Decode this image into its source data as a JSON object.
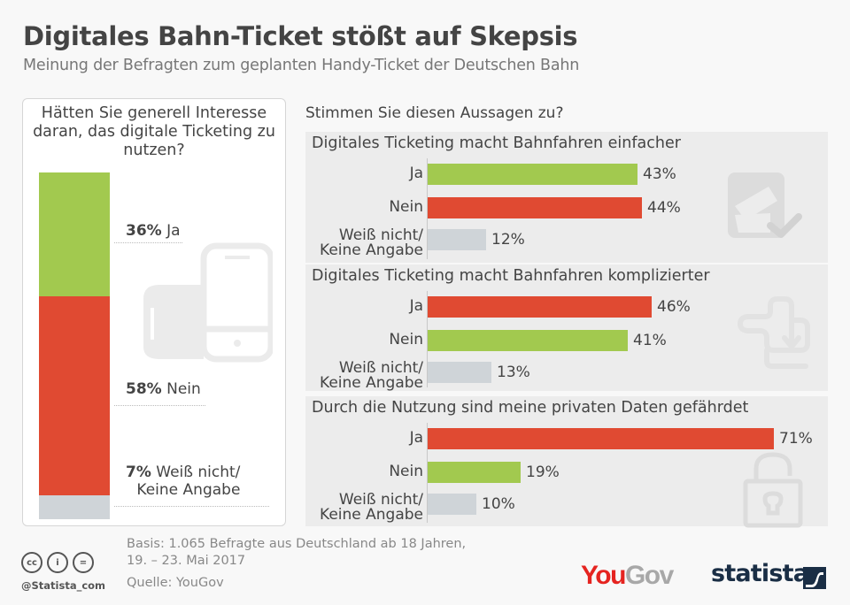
{
  "header": {
    "title": "Digitales Bahn-Ticket stößt auf Skepsis",
    "subtitle": "Meinung der Befragten zum geplanten Handy-Ticket der Deutschen Bahn"
  },
  "colors": {
    "ja_green": "#a2c94f",
    "nein_red": "#e04a32",
    "unknown_grey": "#cfd4d8",
    "group_bg": "#ececec"
  },
  "chart_data": [
    {
      "type": "bar",
      "orientation": "stacked-vertical",
      "title": "Hätten Sie generell Interesse daran, das digitale Ticketing zu nutzen?",
      "categories": [
        "Ja",
        "Nein",
        "Weiß nicht/ Keine Angabe"
      ],
      "values": [
        36,
        58,
        7
      ],
      "unit": "%",
      "labels": [
        {
          "pct": "36%",
          "text": "Ja"
        },
        {
          "pct": "58%",
          "text": "Nein"
        },
        {
          "pct": "7%",
          "text": "Weiß nicht/",
          "text2": "Keine Angabe"
        }
      ]
    },
    {
      "type": "bar",
      "orientation": "horizontal",
      "title": "Stimmen Sie diesen Aussagen zu?",
      "xlim": [
        0,
        100
      ],
      "groups": [
        {
          "title": "Digitales Ticketing macht Bahnfahren einfacher",
          "icon": "ticket-check-icon",
          "bars": [
            {
              "label": "Ja",
              "value": 43,
              "display": "43%",
              "color": "green"
            },
            {
              "label": "Nein",
              "value": 44,
              "display": "44%",
              "color": "red"
            },
            {
              "label": "Weiß nicht/",
              "label2": "Keine Angabe",
              "value": 12,
              "display": "12%",
              "color": "grey"
            }
          ]
        },
        {
          "title": "Digitales Ticketing macht Bahnfahren komplizierter",
          "icon": "maze-arrow-icon",
          "bars": [
            {
              "label": "Ja",
              "value": 46,
              "display": "46%",
              "color": "red"
            },
            {
              "label": "Nein",
              "value": 41,
              "display": "41%",
              "color": "green"
            },
            {
              "label": "Weiß nicht/",
              "label2": "Keine Angabe",
              "value": 13,
              "display": "13%",
              "color": "grey"
            }
          ]
        },
        {
          "title": "Durch die Nutzung sind meine privaten Daten gefährdet",
          "icon": "padlock-icon",
          "bars": [
            {
              "label": "Ja",
              "value": 71,
              "display": "71%",
              "color": "red"
            },
            {
              "label": "Nein",
              "value": 19,
              "display": "19%",
              "color": "green"
            },
            {
              "label": "Weiß nicht/",
              "label2": "Keine Angabe",
              "value": 10,
              "display": "10%",
              "color": "grey"
            }
          ]
        }
      ]
    }
  ],
  "footer": {
    "basis": "Basis: 1.065 Befragte aus Deutschland ab 18 Jahren,",
    "dates": "19. – 23. Mai 2017",
    "source": "Quelle: YouGov",
    "handle": "@Statista_com",
    "cc_icons": [
      "cc",
      "by",
      "nd"
    ],
    "cc_text": [
      "cc",
      "i",
      "="
    ]
  },
  "brands": {
    "yougov_you": "You",
    "yougov_gov": "Gov",
    "statista": "statista"
  }
}
